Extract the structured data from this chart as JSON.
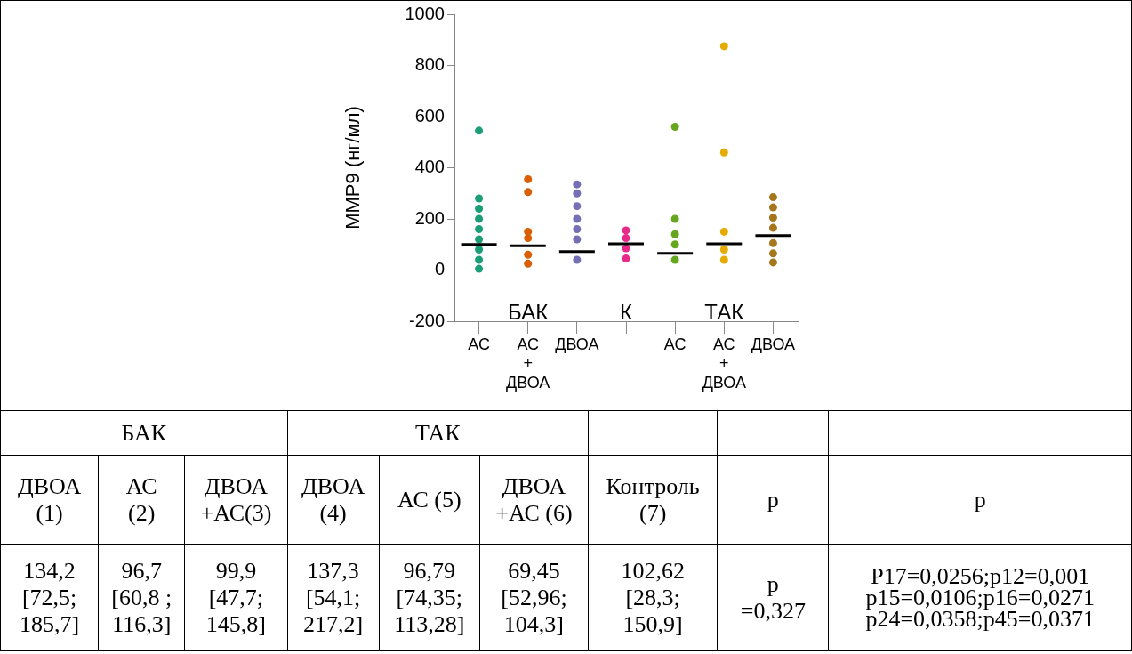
{
  "chart_data": {
    "type": "scatter",
    "ylabel": "MMP9 (нг/мл)",
    "categories": [
      "АС",
      "АС + ДВОА",
      "ДВОА",
      null,
      "АС",
      "АС + ДВОА",
      "ДВОА"
    ],
    "ylim": [
      -200,
      1000
    ],
    "yticks": [
      -200,
      0,
      200,
      400,
      600,
      800,
      1000
    ],
    "legend": false,
    "marker": "circle",
    "series": [
      {
        "colors": [
          "#1b9e77",
          "#d95f02",
          "#7570b3",
          "#e7298a",
          "#66a61e",
          "#e6ab02",
          "#a6761d"
        ],
        "values": [
          545,
          355,
          335,
          155,
          560,
          875,
          285
        ]
      },
      {
        "colors": [
          "#1b9e77",
          "#d95f02",
          "#7570b3",
          "#e7298a",
          "#66a61e",
          "#e6ab02",
          "#a6761d"
        ],
        "values": [
          280,
          305,
          300,
          125,
          200,
          460,
          245
        ]
      },
      {
        "colors": [
          "#1b9e77",
          "#d95f02",
          "#7570b3",
          "#e7298a",
          "#66a61e",
          "#e6ab02",
          "#a6761d"
        ],
        "values": [
          240,
          150,
          250,
          85,
          140,
          150,
          205
        ]
      },
      {
        "colors": [
          "#1b9e77",
          "#d95f02",
          "#7570b3",
          "#e7298a",
          "#66a61e",
          "#e6ab02",
          "#a6761d"
        ],
        "values": [
          200,
          125,
          200,
          45,
          100,
          80,
          165
        ]
      },
      {
        "colors": [
          "#1b9e77",
          "#d95f02",
          "#7570b3",
          "#e7298a",
          "#66a61e",
          "#e6ab02",
          "#a6761d"
        ],
        "values": [
          160,
          60,
          160,
          null,
          40,
          40,
          105
        ]
      },
      {
        "colors": [
          "#1b9e77",
          "#d95f02",
          "#7570b3",
          "#e7298a",
          "#66a61e",
          "#e6ab02",
          "#a6761d"
        ],
        "values": [
          120,
          25,
          120,
          null,
          null,
          null,
          65
        ]
      },
      {
        "colors": [
          "#1b9e77",
          "#d95f02",
          "#7570b3",
          "#e7298a",
          "#66a61e",
          "#e6ab02",
          "#a6761d"
        ],
        "values": [
          80,
          null,
          40,
          null,
          null,
          null,
          30
        ]
      },
      {
        "colors": [
          "#1b9e77",
          "#d95f02",
          "#7570b3",
          "#e7298a",
          "#66a61e",
          "#e6ab02",
          "#a6761d"
        ],
        "values": [
          40,
          null,
          null,
          null,
          null,
          null,
          null
        ]
      },
      {
        "colors": [
          "#1b9e77",
          "#d95f02",
          "#7570b3",
          "#e7298a",
          "#66a61e",
          "#e6ab02",
          "#a6761d"
        ],
        "values": [
          5,
          null,
          null,
          null,
          null,
          null,
          null
        ]
      },
      {
        "type": "box",
        "color": "#000000",
        "boxes": [
          {
            "low": 100,
            "q1": 100,
            "median": 100,
            "q3": 100,
            "high": 100
          },
          {
            "low": 95,
            "q1": 95,
            "median": 95,
            "q3": 95,
            "high": 95
          },
          {
            "low": 72,
            "q1": 72,
            "median": 72,
            "q3": 72,
            "high": 72
          },
          {
            "low": 103,
            "q1": 103,
            "median": 103,
            "q3": 103,
            "high": 103
          },
          {
            "low": 65,
            "q1": 65,
            "median": 65,
            "q3": 65,
            "high": 65
          },
          {
            "low": 103,
            "q1": 103,
            "median": 103,
            "q3": 103,
            "high": 103
          },
          {
            "low": 135,
            "q1": 135,
            "median": 135,
            "q3": 135,
            "high": 135
          }
        ]
      }
    ],
    "annotations": [
      "БАК",
      "К",
      "ТАК",
      "БАК",
      "ТАК",
      "ДВОА\n(1)",
      "АС\n(2)",
      "ДВОА\n+АС(3)",
      "ДВОА\n(4)",
      "АС (5)",
      "ДВОА\n+АС (6)",
      "Контроль\n(7)",
      "p",
      "p",
      "134,2\n[72,5;\n185,7]",
      "96,7\n[60,8 ;\n116,3]",
      "99,9\n[47,7;\n145,8]",
      "137,3\n[54,1;\n217,2]",
      "96,79\n[74,35;\n113,28]",
      "69,45\n[52,96;\n104,3]",
      "102,62\n[28,3;\n150,9]",
      "p\n=0,327",
      "P17=0,0256;p12=0,001\np15=0,0106;p16=0,0271\np24=0,0358;p45=0,0371"
    ]
  }
}
